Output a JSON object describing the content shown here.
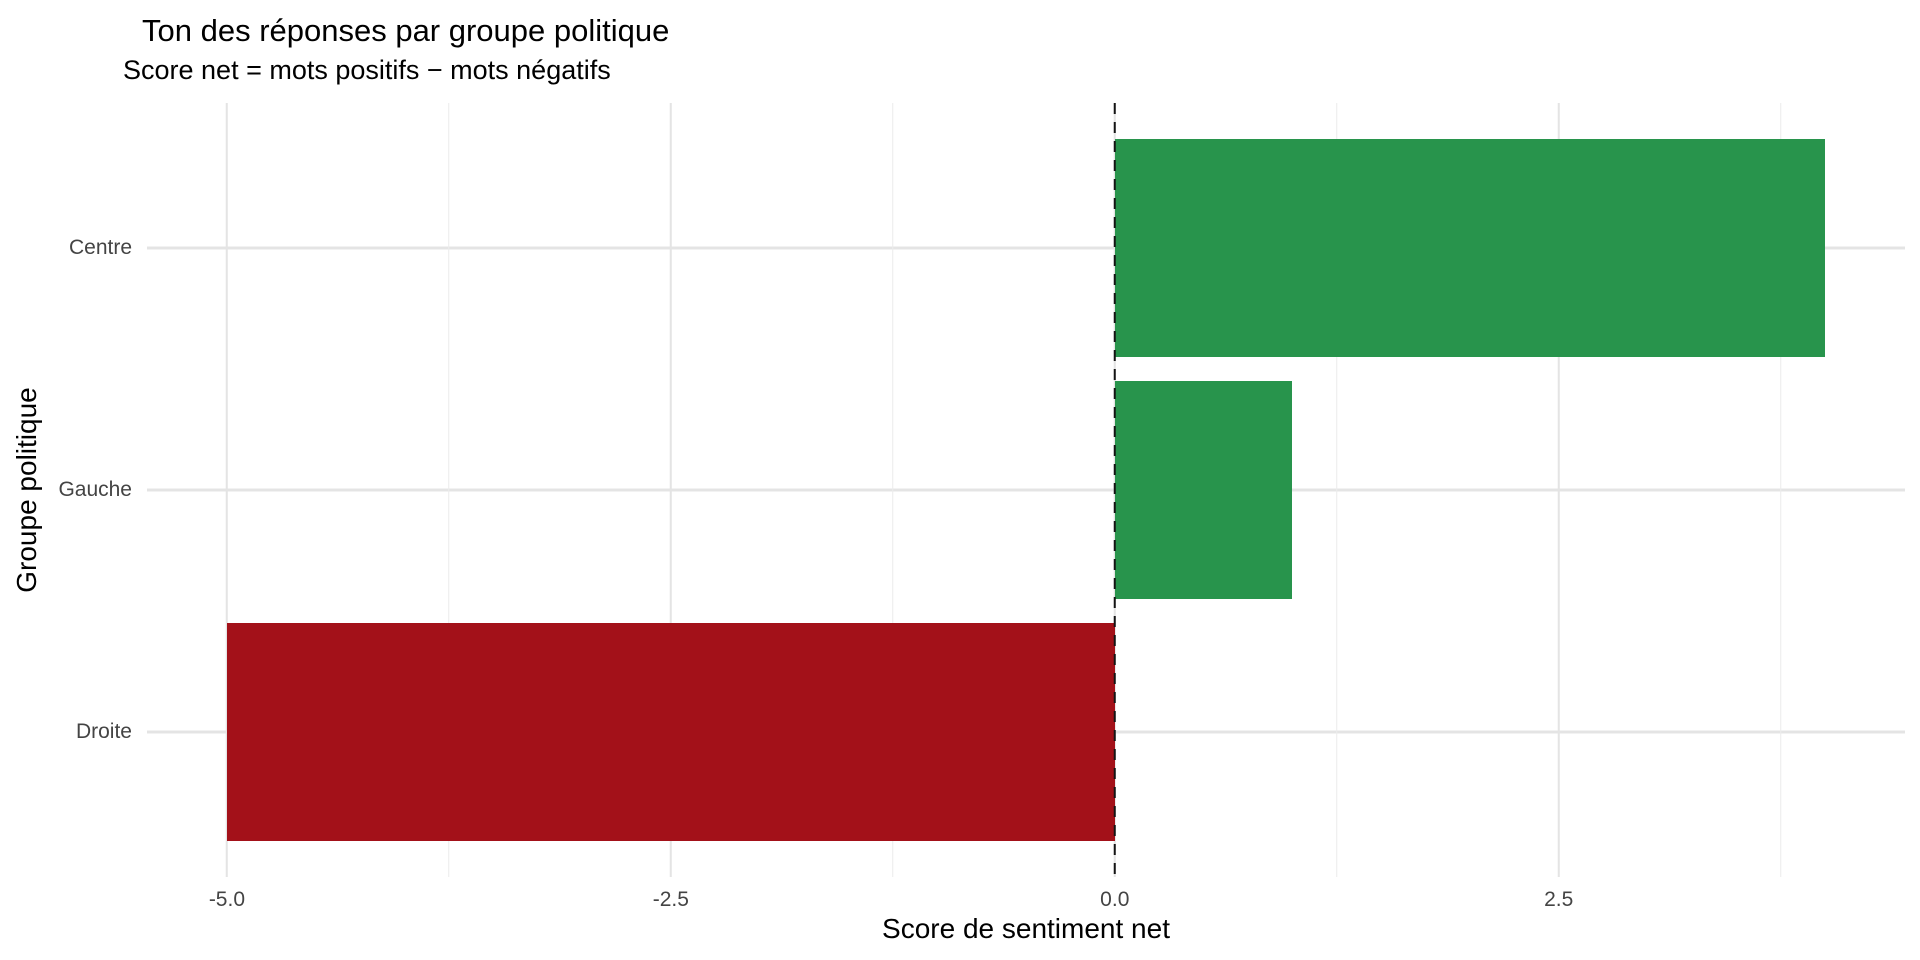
{
  "chart_data": {
    "type": "bar",
    "orientation": "horizontal",
    "title": "Ton des réponses par groupe politique",
    "subtitle": "Score net = mots positifs − mots négatifs",
    "xlabel": "Score de sentiment net",
    "ylabel": "Groupe politique",
    "categories": [
      "Centre",
      "Gauche",
      "Droite"
    ],
    "bars": [
      {
        "category": "Centre",
        "value": 4,
        "color": "#28944C"
      },
      {
        "category": "Gauche",
        "value": 1,
        "color": "#28944C"
      },
      {
        "category": "Droite",
        "value": -5,
        "color": "#A31119"
      }
    ],
    "positive_color": "#28944C",
    "negative_color": "#A31119",
    "xlim": [
      -5.45,
      4.45
    ],
    "x_ticks": [
      {
        "value": -5.0,
        "label": "-5.0"
      },
      {
        "value": -2.5,
        "label": "-2.5"
      },
      {
        "value": 0.0,
        "label": "0.0"
      },
      {
        "value": 2.5,
        "label": "2.5"
      }
    ],
    "x_minor_ticks": [
      -3.75,
      -1.25,
      1.25,
      3.75
    ],
    "zero_line": {
      "x": 0,
      "style": "dashed",
      "color": "#141414"
    },
    "grid": true,
    "legend": false,
    "background": "#ffffff",
    "grid_color_major": "#e4e4e4",
    "grid_color_minor": "#ebebeb",
    "tick_label_color": "#444444"
  }
}
